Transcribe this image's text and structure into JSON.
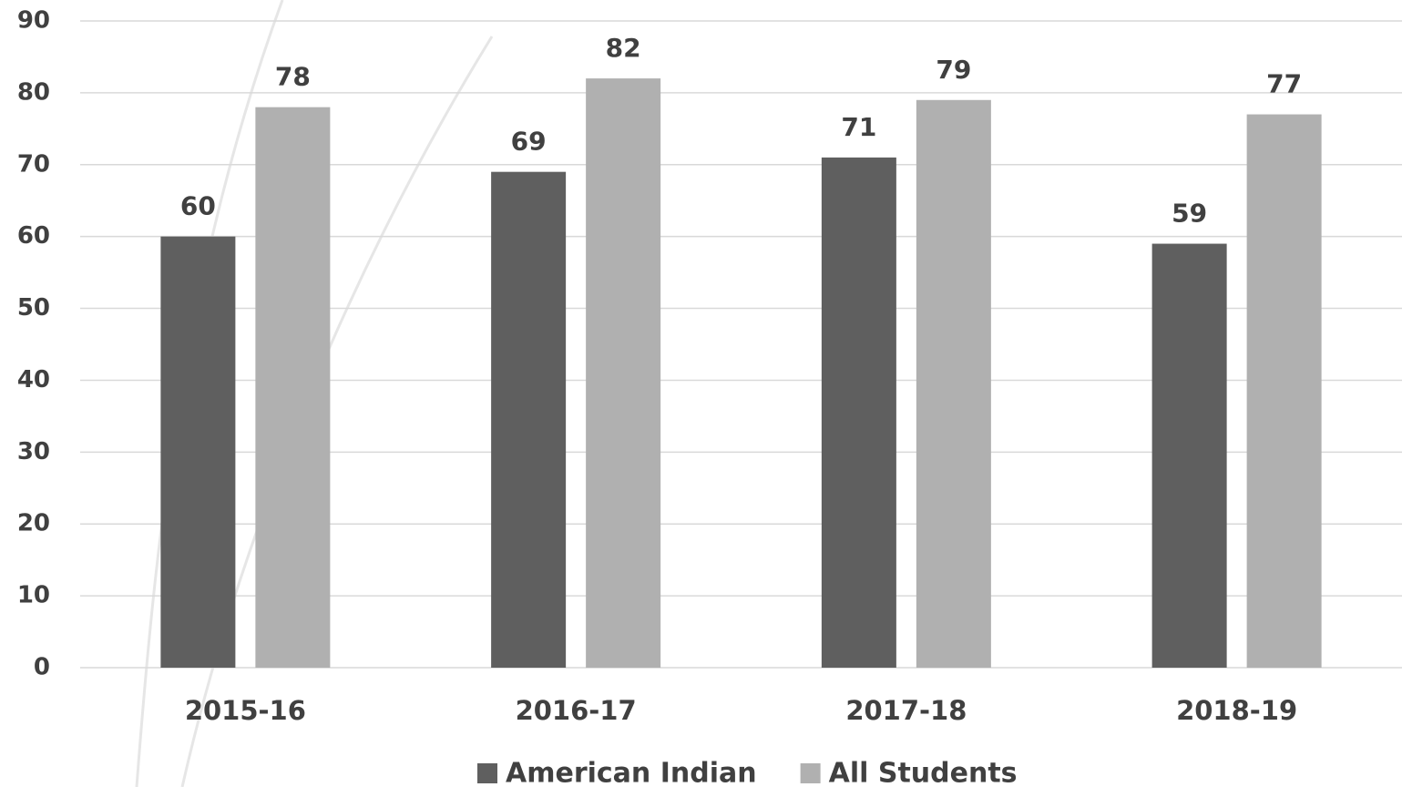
{
  "chart_data": {
    "type": "bar",
    "categories": [
      "2015-16",
      "2016-17",
      "2017-18",
      "2018-19"
    ],
    "series": [
      {
        "name": "American Indian",
        "color": "#5f5f5f",
        "values": [
          60,
          69,
          71,
          59
        ]
      },
      {
        "name": "All Students",
        "color": "#b0b0b0",
        "values": [
          78,
          82,
          79,
          77
        ]
      }
    ],
    "ylim": [
      0,
      90
    ],
    "yticks": [
      0,
      10,
      20,
      30,
      40,
      50,
      60,
      70,
      80,
      90
    ],
    "grid": true,
    "legend": "bottom"
  }
}
